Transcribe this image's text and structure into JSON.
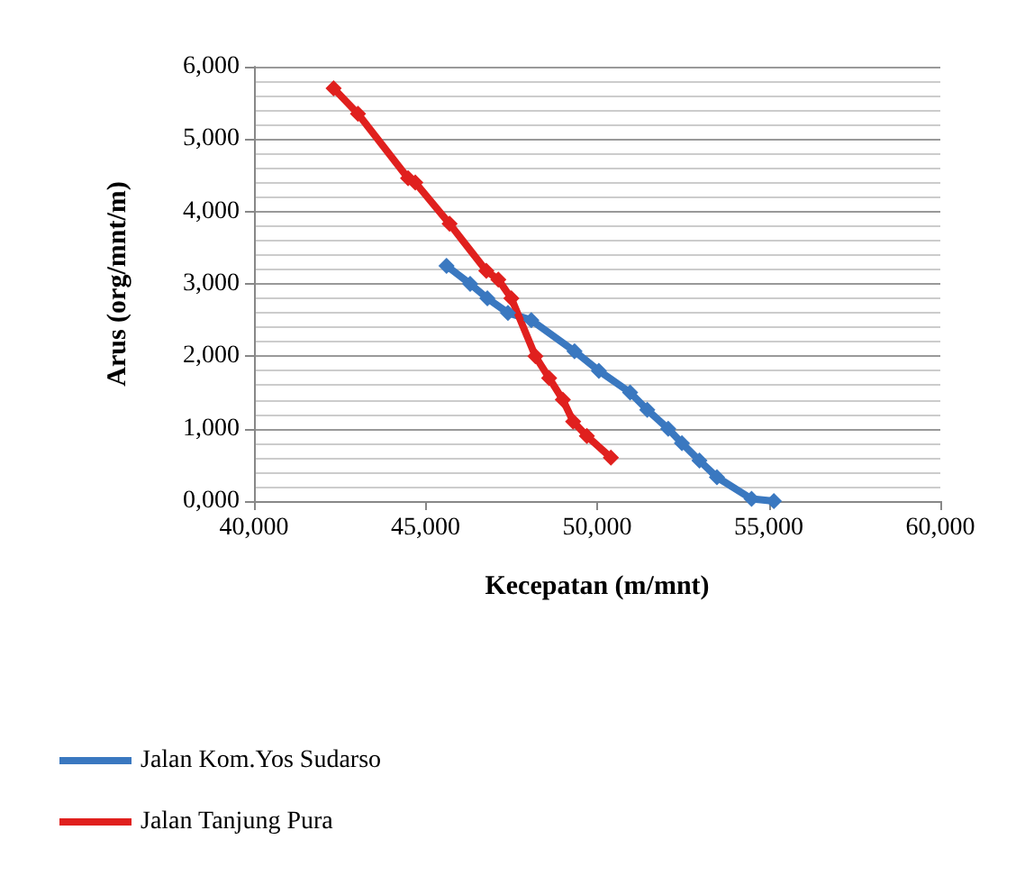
{
  "chart_data": {
    "type": "line",
    "xlabel": "Kecepatan (m/mnt)",
    "ylabel": "Arus (org/mnt/m)",
    "xlim": [
      40000,
      60000
    ],
    "xticks": [
      {
        "value": 40000,
        "label": "40,000"
      },
      {
        "value": 45000,
        "label": "45,000"
      },
      {
        "value": 50000,
        "label": "50,000"
      },
      {
        "value": 55000,
        "label": "55,000"
      },
      {
        "value": 60000,
        "label": "60,000"
      }
    ],
    "ylim": [
      0,
      6000
    ],
    "yticks": [
      {
        "value": 0,
        "label": "0,000"
      },
      {
        "value": 1000,
        "label": "1,000"
      },
      {
        "value": 2000,
        "label": "2,000"
      },
      {
        "value": 3000,
        "label": "3,000"
      },
      {
        "value": 4000,
        "label": "4,000"
      },
      {
        "value": 5000,
        "label": "5,000"
      },
      {
        "value": 6000,
        "label": "6,000"
      }
    ],
    "grid": "y",
    "legend": "bottom",
    "marker": "diamond",
    "line_style": "solid",
    "series": [
      {
        "name": "Jalan Kom.Yos Sudarso",
        "color": "#3a78c0",
        "x": [
          45610,
          46300,
          46800,
          47400,
          48080,
          49340,
          50050,
          50960,
          51460,
          52070,
          52470,
          52980,
          53490,
          54500,
          55150
        ],
        "values": [
          3250,
          3000,
          2800,
          2600,
          2500,
          2070,
          1800,
          1500,
          1260,
          1000,
          800,
          560,
          330,
          30,
          0
        ]
      },
      {
        "name": "Jalan Tanjung Pura",
        "color": "#e0201e",
        "x": [
          42320,
          43030,
          44490,
          44700,
          45700,
          46770,
          47120,
          47500,
          48200,
          48600,
          49000,
          49300,
          49700,
          50400
        ],
        "values": [
          5700,
          5350,
          4460,
          4400,
          3830,
          3180,
          3060,
          2800,
          2000,
          1700,
          1400,
          1100,
          900,
          600
        ]
      }
    ]
  }
}
